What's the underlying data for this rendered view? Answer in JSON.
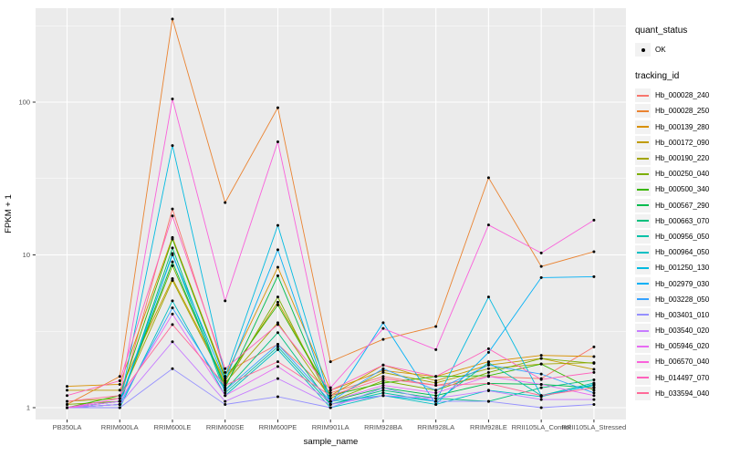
{
  "chart_data": {
    "type": "line",
    "title": "",
    "xlabel": "sample_name",
    "ylabel": "FPKM + 1",
    "y_scale": "log10",
    "ylim": [
      1,
      400
    ],
    "y_ticks": [
      1,
      10,
      100
    ],
    "grid": "on",
    "legend_position": "right",
    "panel_bg": "#EBEBEB",
    "grid_color": "#FFFFFF",
    "tick_label_color": "#4D4D4D",
    "point_color": "#000000",
    "categories": [
      "PB350LA",
      "RRIM600LA",
      "RRIM600LE",
      "RRIM600SE",
      "RRIM600PE",
      "RRIM901LA",
      "RRIM928BA",
      "RRIM928LA",
      "RRIM928LE",
      "RRII105LA_Control",
      "RRII105LA_Stressed"
    ],
    "legend": {
      "quant_status_title": "quant_status",
      "quant_status_items": [
        {
          "label": "OK",
          "symbol": "point"
        }
      ],
      "tracking_title": "tracking_id"
    },
    "series": [
      {
        "name": "Hb_000028_240",
        "color": "#F8766D",
        "values": [
          1.0,
          1.1,
          20,
          1.7,
          2.6,
          1.25,
          1.6,
          1.4,
          1.6,
          1.55,
          2.5
        ]
      },
      {
        "name": "Hb_000028_250",
        "color": "#EA8331",
        "values": [
          1.05,
          1.6,
          350,
          22,
          92,
          2.0,
          2.8,
          3.4,
          32,
          8.4,
          10.5
        ]
      },
      {
        "name": "Hb_000139_280",
        "color": "#D89000",
        "values": [
          1.38,
          1.42,
          13,
          1.6,
          8.3,
          1.3,
          1.75,
          1.6,
          2.0,
          2.2,
          2.16
        ]
      },
      {
        "name": "Hb_000172_090",
        "color": "#C09B00",
        "values": [
          1.3,
          1.3,
          7.0,
          1.5,
          4.9,
          1.2,
          1.9,
          1.5,
          1.9,
          2.1,
          1.78
        ]
      },
      {
        "name": "Hb_000190_220",
        "color": "#A3A500",
        "values": [
          1.1,
          1.15,
          6.8,
          1.45,
          3.6,
          1.15,
          1.7,
          1.45,
          1.8,
          1.93,
          1.97
        ]
      },
      {
        "name": "Hb_000250_040",
        "color": "#7CAE00",
        "values": [
          1.05,
          1.1,
          8.5,
          1.4,
          5.3,
          1.1,
          1.5,
          1.3,
          1.7,
          2.1,
          1.95
        ]
      },
      {
        "name": "Hb_000500_340",
        "color": "#39B600",
        "values": [
          1.0,
          1.2,
          12.7,
          1.55,
          4.7,
          1.2,
          1.45,
          1.6,
          1.62,
          1.93,
          1.3
        ]
      },
      {
        "name": "Hb_000567_290",
        "color": "#00BB4E",
        "values": [
          1.0,
          1.1,
          9.0,
          1.35,
          7.3,
          1.1,
          1.35,
          1.2,
          1.44,
          1.42,
          1.35
        ]
      },
      {
        "name": "Hb_000663_070",
        "color": "#00BF7D",
        "values": [
          1.0,
          1.05,
          11.1,
          1.3,
          3.1,
          1.05,
          1.3,
          1.15,
          1.1,
          1.35,
          1.52
        ]
      },
      {
        "name": "Hb_000956_050",
        "color": "#00C1A7",
        "values": [
          1.0,
          1.05,
          10.2,
          1.25,
          2.5,
          1.05,
          1.25,
          1.1,
          1.97,
          1.2,
          1.45
        ]
      },
      {
        "name": "Hb_000964_050",
        "color": "#00BFC4",
        "values": [
          1.0,
          1.0,
          5.0,
          1.2,
          2.4,
          1.0,
          1.2,
          1.05,
          1.3,
          1.18,
          1.42
        ]
      },
      {
        "name": "Hb_001250_130",
        "color": "#00BAE0",
        "values": [
          1.0,
          1.05,
          52,
          1.6,
          15.6,
          1.1,
          1.2,
          1.1,
          5.3,
          1.2,
          1.4
        ]
      },
      {
        "name": "Hb_002979_030",
        "color": "#00B0F6",
        "values": [
          1.0,
          1.1,
          10.0,
          1.5,
          10.8,
          1.05,
          3.6,
          1.05,
          2.3,
          7.1,
          7.2
        ]
      },
      {
        "name": "Hb_003228_050",
        "color": "#35A2FF",
        "values": [
          1.0,
          1.05,
          4.5,
          1.3,
          2.6,
          1.1,
          1.8,
          1.3,
          1.9,
          1.66,
          1.25
        ]
      },
      {
        "name": "Hb_003401_010",
        "color": "#9590FF",
        "values": [
          1.0,
          1.0,
          1.8,
          1.05,
          1.18,
          1.0,
          1.35,
          1.1,
          1.1,
          1.0,
          1.05
        ]
      },
      {
        "name": "Hb_003540_020",
        "color": "#C77CFF",
        "values": [
          1.0,
          1.05,
          2.7,
          1.1,
          1.55,
          1.05,
          1.2,
          1.15,
          1.29,
          1.13,
          1.13
        ]
      },
      {
        "name": "Hb_005946_020",
        "color": "#E76BF3",
        "values": [
          1.0,
          1.1,
          4.1,
          1.2,
          1.86,
          1.1,
          1.4,
          1.25,
          1.6,
          1.42,
          1.2
        ]
      },
      {
        "name": "Hb_006570_040",
        "color": "#FA62DB",
        "values": [
          1.0,
          1.15,
          105,
          5.0,
          55,
          1.35,
          3.3,
          2.4,
          15.7,
          10.3,
          16.9
        ]
      },
      {
        "name": "Hb_014497_070",
        "color": "#FF62BC",
        "values": [
          1.2,
          1.5,
          18,
          1.8,
          3.5,
          1.3,
          1.9,
          1.6,
          2.43,
          1.53,
          1.7
        ]
      },
      {
        "name": "Hb_033594_040",
        "color": "#FF6A98",
        "values": [
          1.1,
          1.2,
          3.5,
          1.4,
          2.0,
          1.2,
          1.55,
          1.4,
          1.44,
          1.2,
          1.35
        ]
      }
    ]
  }
}
